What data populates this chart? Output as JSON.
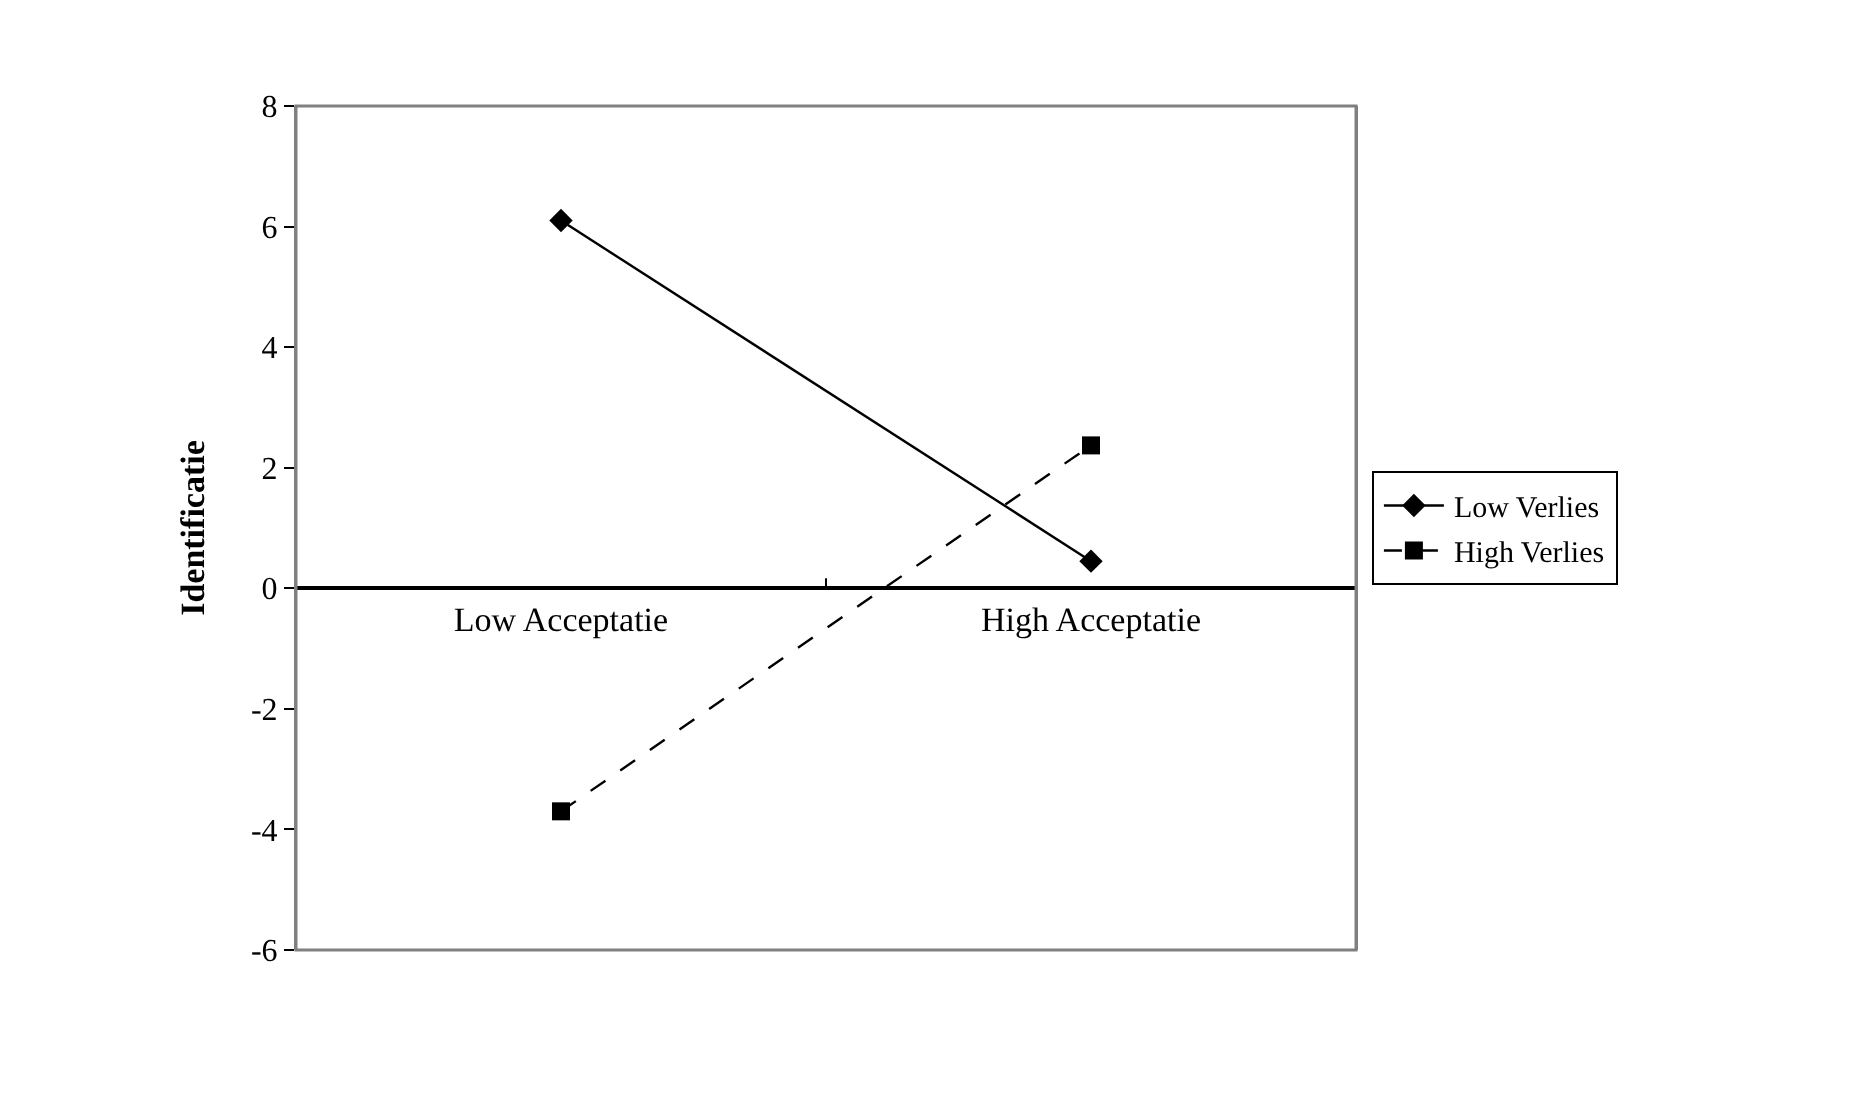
{
  "chart_data": {
    "type": "line",
    "ylabel": "Identificatie",
    "categories": [
      "Low Acceptatie",
      "High Acceptatie"
    ],
    "series": [
      {
        "name": "Low Verlies",
        "color": "#000000",
        "values": [
          6.1,
          0.45
        ],
        "marker": "diamond",
        "line_style": "solid"
      },
      {
        "name": "High Verlies",
        "color": "#000000",
        "values": [
          -3.7,
          2.37
        ],
        "marker": "square",
        "line_style": "dashed"
      }
    ],
    "ylim": [
      -6,
      8
    ],
    "yticks": [
      -6,
      -4,
      -2,
      0,
      2,
      4,
      6,
      8
    ],
    "legend": "right"
  }
}
